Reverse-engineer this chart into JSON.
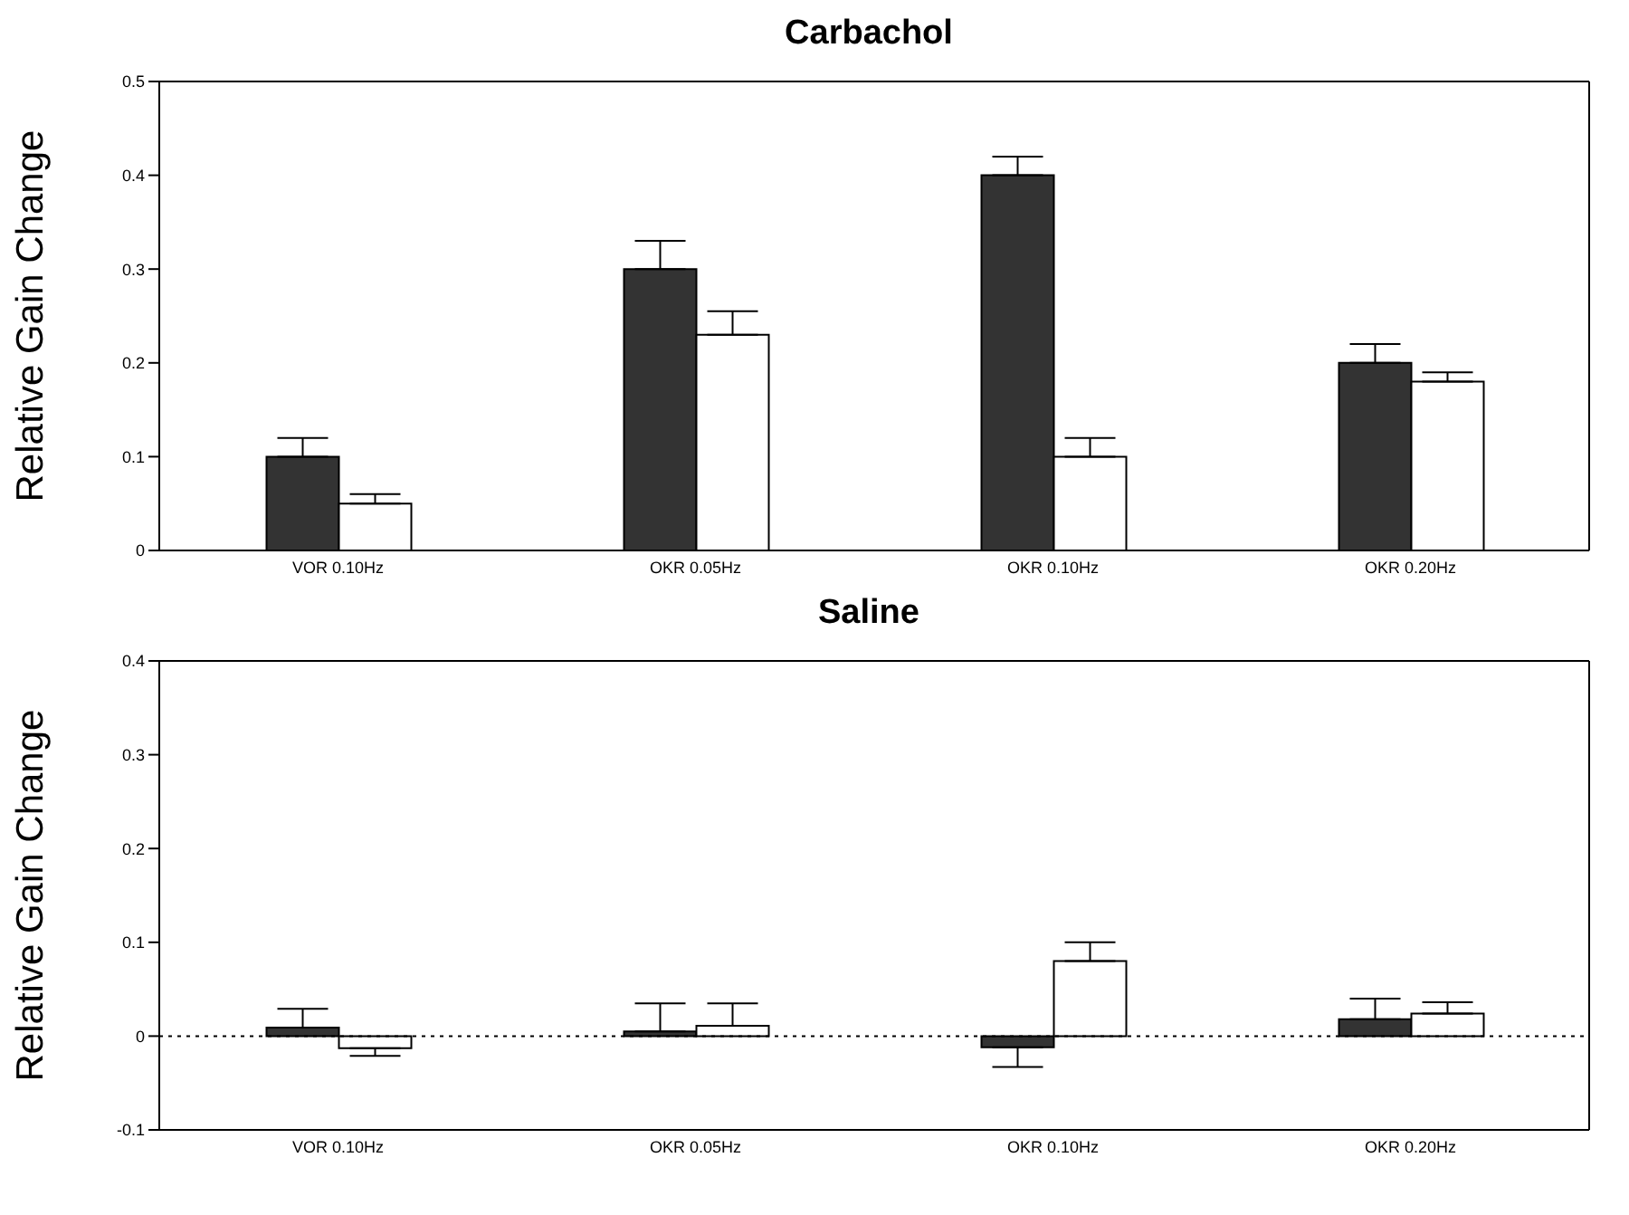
{
  "chart_data": [
    {
      "type": "bar",
      "title": "Carbachol",
      "ylabel": "Relative Gain Change",
      "categories": [
        "VOR 0.10Hz",
        "OKR 0.05Hz",
        "OKR 0.10Hz",
        "OKR 0.20Hz"
      ],
      "series": [
        {
          "color": "#333333",
          "values": [
            0.1,
            0.3,
            0.4,
            0.2
          ],
          "errors": [
            [
              0.1,
              0.12
            ],
            [
              0.3,
              0.33
            ],
            [
              0.4,
              0.42
            ],
            [
              0.2,
              0.22
            ]
          ]
        },
        {
          "color": "#ffffff",
          "values": [
            0.05,
            0.23,
            0.1,
            0.18
          ],
          "errors": [
            [
              0.05,
              0.06
            ],
            [
              0.23,
              0.255
            ],
            [
              0.1,
              0.12
            ],
            [
              0.18,
              0.19
            ]
          ]
        }
      ],
      "ylim": [
        0,
        0.5
      ],
      "yticks": [
        {
          "value": 0,
          "label": "0"
        },
        0.1,
        0.2,
        0.3,
        0.4,
        0.5
      ],
      "grid": false,
      "legend": false
    },
    {
      "type": "bar",
      "title": "Saline",
      "ylabel": "Relative Gain Change",
      "categories": [
        "VOR 0.10Hz",
        "OKR 0.05Hz",
        "OKR 0.10Hz",
        "OKR 0.20Hz"
      ],
      "series": [
        {
          "color": "#333333",
          "values": [
            0.009,
            0.005,
            -0.012,
            0.018
          ],
          "errors": [
            [
              0.009,
              0.029
            ],
            [
              0.005,
              0.035
            ],
            [
              -0.033,
              -0.012
            ],
            [
              0.018,
              0.04
            ]
          ]
        },
        {
          "color": "#ffffff",
          "values": [
            -0.013,
            0.011,
            0.08,
            0.024
          ],
          "errors": [
            [
              -0.021,
              -0.013
            ],
            [
              0.011,
              0.035
            ],
            [
              0.08,
              0.1
            ],
            [
              0.024,
              0.036
            ]
          ]
        }
      ],
      "ylim": [
        -0.1,
        0.4
      ],
      "yticks": [
        -0.1,
        {
          "value": 0,
          "label": "0"
        },
        0.1,
        0.2,
        0.3,
        0.4
      ],
      "grid": false,
      "legend": false,
      "ref_lines": [
        {
          "axis": "y",
          "value": 0,
          "line_style": "dotted",
          "color": "#000000"
        }
      ]
    }
  ]
}
